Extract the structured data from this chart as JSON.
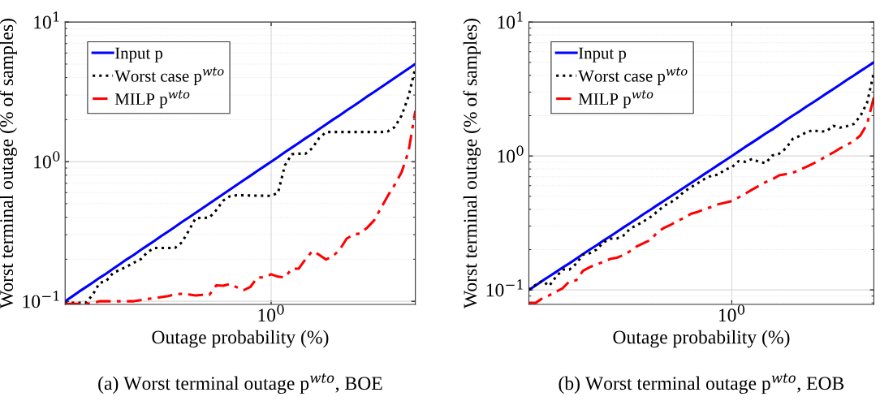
{
  "chart_data": [
    {
      "type": "line",
      "title": "(a) Worst terminal outage p$^{wto}$, BOE",
      "xlabel": "Outage probability (%)",
      "ylabel": "Worst terminal outage (% of samples)",
      "log": "y",
      "grid": true,
      "legend": "top left",
      "categories": [
        null,
        null,
        null,
        null,
        null,
        null,
        null,
        null,
        null,
        null,
        null,
        null,
        null,
        null,
        null,
        null,
        null,
        null,
        null,
        null,
        null,
        null,
        null,
        null,
        null,
        null,
        null,
        null,
        null,
        null,
        "10$^{0}$",
        null,
        null,
        null,
        null,
        null,
        null,
        null,
        null,
        null,
        null,
        null,
        null,
        null,
        null,
        null,
        null,
        null,
        null,
        null,
        null,
        null
      ],
      "ylim": [
        0.095,
        10
      ],
      "yticks": [
        {
          "value": 0.1,
          "label": "10$^{−1}$"
        },
        {
          "value": 1,
          "label": "10$^{0}$"
        },
        {
          "value": 10,
          "label": "10$^{1}$"
        }
      ],
      "series": [
        {
          "name": "Input p",
          "color": "#0000ff",
          "line_style": "solid",
          "values": [
            0.1,
            0.108,
            0.117,
            0.126,
            0.136,
            0.147,
            0.158,
            0.171,
            0.185,
            0.2,
            0.215,
            0.233,
            0.251,
            0.271,
            0.293,
            0.316,
            0.341,
            0.369,
            0.398,
            0.43,
            0.464,
            0.501,
            0.541,
            0.584,
            0.631,
            0.681,
            0.736,
            0.794,
            0.858,
            0.926,
            1.0,
            1.08,
            1.17,
            1.26,
            1.36,
            1.47,
            1.58,
            1.71,
            1.85,
            2.0,
            2.15,
            2.33,
            2.51,
            2.71,
            2.93,
            3.16,
            3.41,
            3.69,
            3.98,
            4.3,
            4.64,
            5.01
          ]
        },
        {
          "name": "Worst case p$^{wto}$",
          "color": "#000000",
          "line_style": "dotted",
          "values": [
            0.0975,
            0.0975,
            0.0975,
            0.0975,
            0.111,
            0.135,
            0.14,
            0.16,
            0.168,
            0.177,
            0.189,
            0.2,
            0.225,
            0.241,
            0.241,
            0.241,
            0.241,
            0.264,
            0.32,
            0.394,
            0.395,
            0.397,
            0.449,
            0.525,
            0.565,
            0.575,
            0.574,
            0.572,
            0.571,
            0.57,
            0.569,
            0.598,
            0.94,
            1.13,
            1.14,
            1.14,
            1.25,
            1.48,
            1.63,
            1.63,
            1.63,
            1.63,
            1.63,
            1.63,
            1.63,
            1.63,
            1.63,
            1.65,
            1.77,
            2.14,
            2.93,
            4.7
          ]
        },
        {
          "name": "MILP p$^{wto}$",
          "color": "#ff0000",
          "line_style": "dashed",
          "values": [
            0.096,
            0.096,
            0.096,
            0.096,
            0.097,
            0.1,
            0.1,
            0.1,
            0.1,
            0.1,
            0.1,
            0.102,
            0.104,
            0.105,
            0.107,
            0.109,
            0.112,
            0.113,
            0.112,
            0.11,
            0.111,
            0.111,
            0.13,
            0.129,
            0.133,
            0.126,
            0.12,
            0.127,
            0.148,
            0.148,
            0.156,
            0.15,
            0.148,
            0.171,
            0.171,
            0.2,
            0.229,
            0.215,
            0.199,
            0.21,
            0.235,
            0.281,
            0.301,
            0.306,
            0.337,
            0.38,
            0.466,
            0.57,
            0.684,
            0.843,
            1.18,
            2.31
          ]
        }
      ]
    },
    {
      "type": "line",
      "title": "(b) Worst terminal outage p$^{wto}$, EOB",
      "xlabel": "Outage probability (%)",
      "ylabel": "Worst terminal outage (% of samples)",
      "log": "y",
      "grid": true,
      "legend": "top left",
      "categories": [
        null,
        null,
        null,
        null,
        null,
        null,
        null,
        null,
        null,
        null,
        null,
        null,
        null,
        null,
        null,
        null,
        null,
        null,
        null,
        null,
        null,
        null,
        null,
        null,
        null,
        null,
        null,
        null,
        null,
        null,
        "10$^{0}$",
        null,
        null,
        null,
        null,
        null,
        null,
        null,
        null,
        null,
        null,
        null,
        null,
        null,
        null,
        null,
        null,
        null,
        null,
        null,
        null,
        null
      ],
      "ylim": [
        0.078,
        10
      ],
      "yticks": [
        {
          "value": 0.1,
          "label": "10$^{−1}$"
        },
        {
          "value": 1,
          "label": "10$^{0}$"
        },
        {
          "value": 10,
          "label": "10$^{1}$"
        }
      ],
      "series": [
        {
          "name": "Input p",
          "color": "#0000ff",
          "line_style": "solid",
          "values": [
            0.1,
            0.108,
            0.117,
            0.126,
            0.136,
            0.147,
            0.158,
            0.171,
            0.185,
            0.2,
            0.215,
            0.233,
            0.251,
            0.271,
            0.293,
            0.316,
            0.341,
            0.369,
            0.398,
            0.43,
            0.464,
            0.501,
            0.541,
            0.584,
            0.631,
            0.681,
            0.736,
            0.794,
            0.858,
            0.926,
            1.0,
            1.08,
            1.17,
            1.26,
            1.36,
            1.47,
            1.58,
            1.71,
            1.85,
            2.0,
            2.15,
            2.33,
            2.51,
            2.71,
            2.93,
            3.16,
            3.41,
            3.69,
            3.98,
            4.3,
            4.64,
            5.01
          ]
        },
        {
          "name": "Worst case p$^{wto}$",
          "color": "#000000",
          "line_style": "dotted",
          "values": [
            0.1,
            0.109,
            0.117,
            0.107,
            0.125,
            0.142,
            0.142,
            0.157,
            0.183,
            0.188,
            0.2,
            0.226,
            0.241,
            0.242,
            0.255,
            0.288,
            0.305,
            0.326,
            0.351,
            0.385,
            0.425,
            0.451,
            0.49,
            0.545,
            0.585,
            0.628,
            0.675,
            0.714,
            0.725,
            0.791,
            0.824,
            0.914,
            0.905,
            0.95,
            0.905,
            0.885,
            1.01,
            1.04,
            1.14,
            1.34,
            1.41,
            1.5,
            1.56,
            1.52,
            1.53,
            1.68,
            1.63,
            1.67,
            1.73,
            1.98,
            2.5,
            4.16
          ]
        },
        {
          "name": "MILP p$^{wto}$",
          "color": "#ff0000",
          "line_style": "dashed",
          "values": [
            0.08,
            0.08,
            0.0866,
            0.091,
            0.097,
            0.103,
            0.116,
            0.118,
            0.139,
            0.148,
            0.155,
            0.162,
            0.17,
            0.174,
            0.182,
            0.195,
            0.212,
            0.224,
            0.236,
            0.27,
            0.291,
            0.307,
            0.328,
            0.346,
            0.371,
            0.383,
            0.402,
            0.416,
            0.436,
            0.448,
            0.461,
            0.49,
            0.523,
            0.561,
            0.598,
            0.638,
            0.67,
            0.717,
            0.733,
            0.75,
            0.785,
            0.829,
            0.876,
            0.93,
            1.0,
            1.06,
            1.14,
            1.21,
            1.29,
            1.42,
            1.73,
            2.74
          ]
        }
      ]
    }
  ]
}
